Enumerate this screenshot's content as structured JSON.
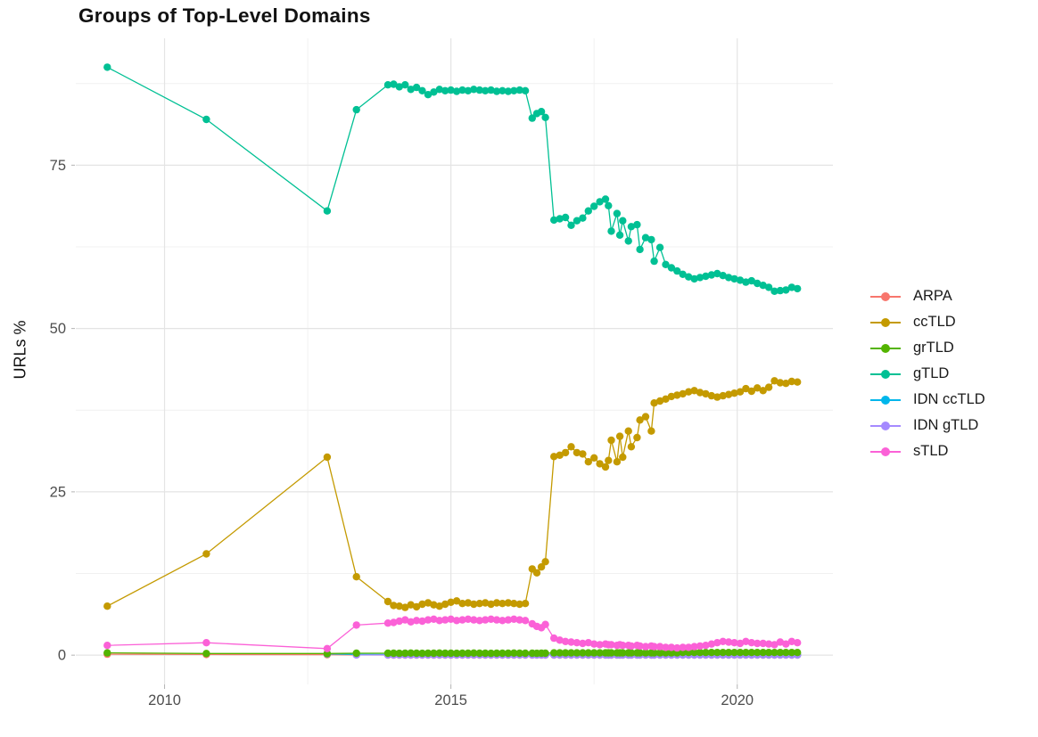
{
  "chart_data": {
    "type": "line",
    "title": "Groups of Top-Level Domains",
    "xlabel": "",
    "ylabel": "URLs %",
    "legend_position": "right",
    "grid": "on",
    "xlim": [
      2008.45,
      2021.67
    ],
    "ylim": [
      -4.48,
      94.42
    ],
    "x_ticks": [
      2010,
      2015,
      2020
    ],
    "x_tick_labels": [
      "2010",
      "2015",
      "2020"
    ],
    "x_minor_ticks": [
      2012.5,
      2017.5
    ],
    "y_ticks": [
      0,
      25,
      50,
      75
    ],
    "y_tick_labels": [
      "0",
      "25",
      "50",
      "75"
    ],
    "y_minor_ticks": [
      12.5,
      37.5,
      62.5,
      87.5
    ],
    "x": [
      2009,
      2010.73,
      2012.84,
      2013.35,
      2013.9,
      2014,
      2014.1,
      2014.2,
      2014.3,
      2014.4,
      2014.5,
      2014.6,
      2014.7,
      2014.8,
      2014.9,
      2015,
      2015.1,
      2015.2,
      2015.3,
      2015.4,
      2015.5,
      2015.6,
      2015.7,
      2015.8,
      2015.9,
      2016,
      2016.1,
      2016.2,
      2016.3,
      2016.42,
      2016.5,
      2016.58,
      2016.65,
      2016.8,
      2016.9,
      2017,
      2017.1,
      2017.2,
      2017.3,
      2017.4,
      2017.5,
      2017.6,
      2017.7,
      2017.75,
      2017.8,
      2017.9,
      2017.95,
      2018,
      2018.1,
      2018.15,
      2018.25,
      2018.3,
      2018.4,
      2018.5,
      2018.55,
      2018.65,
      2018.75,
      2018.85,
      2018.95,
      2019.05,
      2019.15,
      2019.25,
      2019.35,
      2019.45,
      2019.55,
      2019.65,
      2019.75,
      2019.85,
      2019.95,
      2020.05,
      2020.15,
      2020.25,
      2020.35,
      2020.45,
      2020.55,
      2020.65,
      2020.75,
      2020.85,
      2020.95,
      2021.05
    ],
    "series": [
      {
        "name": "ARPA",
        "color": "#F8766D",
        "values": [
          0.15,
          0.1,
          0.08,
          0.05,
          0.02,
          0.02,
          0.02,
          0.02,
          0.02,
          0.02,
          0.02,
          0.02,
          0.02,
          0.02,
          0.02,
          0.02,
          0.02,
          0.02,
          0.02,
          0.02,
          0.02,
          0.02,
          0.02,
          0.02,
          0.02,
          0.02,
          0.02,
          0.02,
          0.02,
          0.02,
          0.02,
          0.02,
          0.02,
          0.02,
          0.02,
          0.02,
          0.02,
          0.02,
          0.02,
          0.02,
          0.02,
          0.02,
          0.02,
          0.02,
          0.02,
          0.02,
          0.02,
          0.02,
          0.02,
          0.02,
          0.02,
          0.02,
          0.02,
          0.02,
          0.02,
          0.02,
          0.02,
          0.02,
          0.02,
          0.02,
          0.02,
          0.02,
          0.02,
          0.02,
          0.02,
          0.02,
          0.02,
          0.02,
          0.02,
          0.02,
          0.02,
          0.02,
          0.02,
          0.02,
          0.02,
          0.02,
          0.02,
          0.02,
          0.02,
          0.02
        ]
      },
      {
        "name": "ccTLD",
        "color": "#C49A00",
        "values": [
          7.5,
          15.5,
          30.3,
          12,
          8.2,
          7.6,
          7.5,
          7.3,
          7.7,
          7.4,
          7.8,
          8,
          7.7,
          7.5,
          7.8,
          8.1,
          8.3,
          7.9,
          8,
          7.8,
          7.9,
          8,
          7.8,
          8,
          7.9,
          8,
          7.9,
          7.8,
          7.9,
          13.2,
          12.6,
          13.5,
          14.3,
          30.4,
          30.6,
          31,
          31.9,
          31,
          30.8,
          29.6,
          30.2,
          29.3,
          28.8,
          29.8,
          32.9,
          29.6,
          33.5,
          30.3,
          34.3,
          31.9,
          33.3,
          36,
          36.5,
          34.3,
          38.6,
          38.9,
          39.2,
          39.6,
          39.8,
          40,
          40.3,
          40.5,
          40.2,
          40,
          39.7,
          39.5,
          39.7,
          39.9,
          40.1,
          40.3,
          40.8,
          40.4,
          40.9,
          40.5,
          41,
          42,
          41.7,
          41.6,
          41.9,
          41.8
        ]
      },
      {
        "name": "grTLD",
        "color": "#53B400",
        "values": [
          0.35,
          0.25,
          0.25,
          0.3,
          0.3,
          0.3,
          0.28,
          0.3,
          0.32,
          0.3,
          0.28,
          0.3,
          0.3,
          0.32,
          0.3,
          0.3,
          0.28,
          0.3,
          0.3,
          0.32,
          0.3,
          0.3,
          0.28,
          0.3,
          0.3,
          0.3,
          0.32,
          0.3,
          0.3,
          0.3,
          0.28,
          0.3,
          0.3,
          0.35,
          0.35,
          0.35,
          0.35,
          0.35,
          0.35,
          0.35,
          0.35,
          0.35,
          0.35,
          0.35,
          0.35,
          0.35,
          0.35,
          0.35,
          0.35,
          0.35,
          0.35,
          0.35,
          0.35,
          0.35,
          0.35,
          0.35,
          0.35,
          0.35,
          0.35,
          0.4,
          0.4,
          0.4,
          0.4,
          0.4,
          0.4,
          0.4,
          0.4,
          0.4,
          0.4,
          0.4,
          0.4,
          0.4,
          0.4,
          0.4,
          0.4,
          0.4,
          0.4,
          0.4,
          0.4,
          0.4
        ]
      },
      {
        "name": "gTLD",
        "color": "#00C094",
        "values": [
          90,
          82,
          68,
          83.5,
          87.3,
          87.4,
          87,
          87.3,
          86.6,
          86.9,
          86.4,
          85.8,
          86.2,
          86.6,
          86.4,
          86.5,
          86.3,
          86.5,
          86.4,
          86.6,
          86.5,
          86.4,
          86.5,
          86.3,
          86.4,
          86.3,
          86.4,
          86.5,
          86.4,
          82.2,
          82.9,
          83.2,
          82.3,
          66.6,
          66.8,
          67,
          65.8,
          66.5,
          66.9,
          68,
          68.7,
          69.4,
          69.8,
          68.8,
          64.9,
          67.6,
          64.3,
          66.5,
          63.4,
          65.6,
          65.9,
          62.1,
          63.9,
          63.6,
          60.3,
          62.4,
          59.8,
          59.3,
          58.8,
          58.3,
          57.9,
          57.6,
          57.8,
          58,
          58.2,
          58.4,
          58.1,
          57.8,
          57.6,
          57.4,
          57.1,
          57.3,
          56.9,
          56.6,
          56.3,
          55.7,
          55.8,
          55.9,
          56.3,
          56.1
        ]
      },
      {
        "name": "IDN ccTLD",
        "color": "#00B6EB",
        "values": [
          null,
          null,
          0.2,
          0.12,
          0.1,
          0.1,
          0.1,
          0.1,
          0.1,
          0.1,
          0.1,
          0.1,
          0.1,
          0.1,
          0.1,
          0.1,
          0.1,
          0.1,
          0.1,
          0.1,
          0.1,
          0.1,
          0.1,
          0.1,
          0.1,
          0.1,
          0.1,
          0.1,
          0.1,
          0.1,
          0.1,
          0.1,
          0.1,
          0.06,
          0.06,
          0.06,
          0.06,
          0.06,
          0.06,
          0.06,
          0.06,
          0.06,
          0.06,
          0.06,
          0.06,
          0.06,
          0.06,
          0.05,
          0.05,
          0.05,
          0.05,
          0.05,
          0.05,
          0.05,
          0.05,
          0.05,
          0.05,
          0.05,
          0.05,
          0.05,
          0.05,
          0.05,
          0.05,
          0.05,
          0.05,
          0.05,
          0.05,
          0.05,
          0.05,
          0.05,
          0.05,
          0.05,
          0.05,
          0.05,
          0.05,
          0.05,
          0.05,
          0.05,
          0.05,
          0.05
        ]
      },
      {
        "name": "IDN gTLD",
        "color": "#A58AFF",
        "values": [
          null,
          null,
          null,
          0.03,
          0.03,
          0.03,
          0.03,
          0.03,
          0.03,
          0.03,
          0.03,
          0.03,
          0.03,
          0.03,
          0.03,
          0.03,
          0.03,
          0.03,
          0.03,
          0.03,
          0.03,
          0.03,
          0.03,
          0.03,
          0.03,
          0.03,
          0.03,
          0.03,
          0.03,
          0.03,
          0.03,
          0.03,
          0.03,
          0.03,
          0.03,
          0.03,
          0.03,
          0.03,
          0.03,
          0.03,
          0.03,
          0.03,
          0.03,
          0.03,
          0.03,
          0.03,
          0.03,
          0.03,
          0.03,
          0.03,
          0.03,
          0.03,
          0.03,
          0.03,
          0.03,
          0.03,
          0.03,
          0.03,
          0.03,
          0.03,
          0.03,
          0.03,
          0.03,
          0.03,
          0.03,
          0.03,
          0.03,
          0.03,
          0.03,
          0.03,
          0.03,
          0.03,
          0.03,
          0.03,
          0.03,
          0.03,
          0.03,
          0.03,
          0.03,
          0.03
        ]
      },
      {
        "name": "sTLD",
        "color": "#FB61D7",
        "values": [
          1.5,
          1.9,
          1,
          4.6,
          4.9,
          5,
          5.2,
          5.4,
          5.1,
          5.3,
          5.2,
          5.4,
          5.5,
          5.3,
          5.4,
          5.5,
          5.3,
          5.4,
          5.5,
          5.4,
          5.3,
          5.4,
          5.5,
          5.4,
          5.3,
          5.4,
          5.5,
          5.4,
          5.3,
          4.8,
          4.4,
          4.2,
          4.7,
          2.6,
          2.3,
          2.1,
          2,
          1.9,
          1.8,
          1.9,
          1.7,
          1.6,
          1.7,
          1.6,
          1.6,
          1.5,
          1.6,
          1.5,
          1.5,
          1.4,
          1.5,
          1.4,
          1.3,
          1.4,
          1.3,
          1.3,
          1.2,
          1.2,
          1.1,
          1.2,
          1.2,
          1.3,
          1.4,
          1.5,
          1.7,
          1.9,
          2.1,
          2,
          1.9,
          1.8,
          2.1,
          1.9,
          1.8,
          1.8,
          1.7,
          1.6,
          2,
          1.7,
          2.1,
          1.9
        ]
      }
    ],
    "draw_order": [
      "ARPA",
      "IDN ccTLD",
      "IDN gTLD",
      "grTLD",
      "gTLD",
      "ccTLD",
      "sTLD"
    ]
  },
  "colors": {
    "grid_major": "#e4e4e4",
    "grid_minor": "#f1f1f1",
    "tick_mark": "#b3b3b3",
    "tick_label": "#4d4d4d",
    "title": "#111111",
    "axis_title": "#111111",
    "legend_label": "#1a1a1a"
  }
}
